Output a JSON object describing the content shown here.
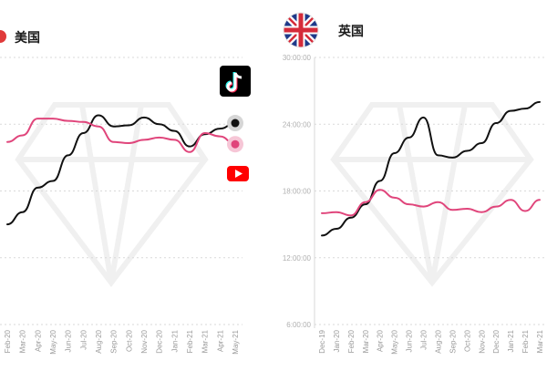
{
  "colors": {
    "tiktok": "#111111",
    "youtube": "#e0457b",
    "youtube_logo": "#ff0000",
    "grid": "#d9d9d9",
    "tick": "#9a9a9a"
  },
  "chart_data": [
    {
      "type": "line",
      "title": "美国",
      "icons": [
        "tiktok-logo-icon",
        "youtube-logo-icon"
      ],
      "x": [
        "Feb-20",
        "Mar-20",
        "Apr-20",
        "May-20",
        "Jun-20",
        "Jul-20",
        "Aug-20",
        "Sep-20",
        "Oct-20",
        "Nov-20",
        "Dec-20",
        "Jan-21",
        "Feb-21",
        "Mar-21",
        "Apr-21",
        "May-21"
      ],
      "ylim": [
        6,
        30
      ],
      "grid": true,
      "series": [
        {
          "key": "tiktok",
          "values": [
            15.0,
            16.1,
            18.3,
            18.9,
            21.2,
            23.2,
            24.8,
            23.8,
            23.9,
            24.6,
            24.0,
            23.4,
            22.0,
            23.1,
            23.6,
            24.1
          ]
        },
        {
          "key": "youtube",
          "values": [
            22.4,
            23.0,
            24.5,
            24.5,
            24.3,
            24.2,
            23.8,
            22.4,
            22.3,
            22.6,
            22.8,
            22.6,
            21.5,
            23.2,
            22.9,
            22.2
          ]
        }
      ]
    },
    {
      "type": "line",
      "title": "英国",
      "icons": [
        "uk-flag-icon"
      ],
      "x": [
        "Dec-19",
        "Jan-20",
        "Feb-20",
        "Mar-20",
        "Apr-20",
        "May-20",
        "Jun-20",
        "Jul-20",
        "Aug-20",
        "Sep-20",
        "Oct-20",
        "Nov-20",
        "Dec-20",
        "Jan-21",
        "Feb-21",
        "Mar-21"
      ],
      "y_ticks": [
        "30:00:00",
        "24:00:00",
        "18:00:00",
        "12:00:00",
        "6:00:00"
      ],
      "ylim": [
        6,
        30
      ],
      "grid": true,
      "series": [
        {
          "key": "tiktok",
          "values": [
            14.0,
            14.6,
            15.6,
            16.8,
            18.9,
            21.4,
            22.8,
            24.6,
            21.2,
            21.0,
            21.6,
            22.3,
            24.1,
            25.2,
            25.4,
            26.0
          ]
        },
        {
          "key": "youtube",
          "values": [
            16.0,
            16.1,
            15.8,
            17.0,
            18.1,
            17.4,
            16.8,
            16.6,
            17.0,
            16.3,
            16.4,
            16.1,
            16.6,
            17.2,
            16.2,
            17.2
          ]
        }
      ]
    }
  ]
}
